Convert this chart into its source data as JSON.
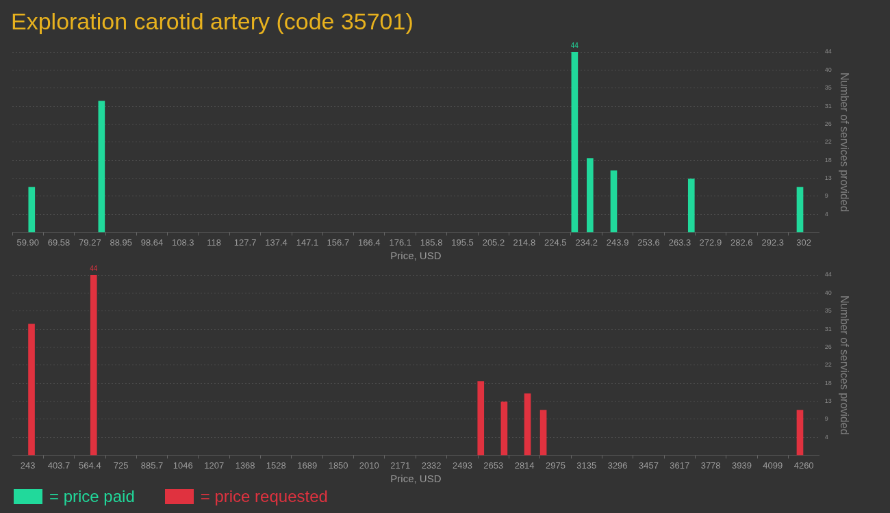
{
  "chart_data": [
    {
      "type": "bar",
      "title": "Exploration carotid artery (code 35701)",
      "xlabel": "Price, USD",
      "ylabel": "Number of services provided",
      "x": [
        61.1,
        82.9,
        230.5,
        235.3,
        242.7,
        266.9,
        300.8
      ],
      "series": [
        {
          "name": "= price paid",
          "color": "#21d99b",
          "values": [
            11,
            32,
            44,
            18,
            15,
            13,
            11
          ],
          "value_labels": [
            null,
            null,
            "44",
            null,
            null,
            null,
            null
          ]
        }
      ],
      "xlim": [
        59.9,
        302
      ],
      "xticks": [
        {
          "value": 59.9,
          "label": "59.90"
        },
        69.58,
        79.27,
        88.95,
        98.64,
        108.3,
        118,
        127.7,
        137.4,
        147.1,
        156.7,
        166.4,
        176.1,
        185.8,
        195.5,
        205.2,
        214.8,
        224.5,
        234.2,
        243.9,
        253.6,
        263.3,
        272.9,
        282.6,
        292.3,
        302
      ],
      "ylim": [
        0,
        44
      ],
      "yticks": [
        {
          "value": 4.4,
          "label": "4"
        },
        {
          "value": 8.8,
          "label": "9"
        },
        {
          "value": 13.2,
          "label": "13"
        },
        {
          "value": 17.6,
          "label": "18"
        },
        {
          "value": 22,
          "label": "22"
        },
        {
          "value": 26.4,
          "label": "26"
        },
        {
          "value": 30.8,
          "label": "31"
        },
        {
          "value": 35.2,
          "label": "35"
        },
        {
          "value": 39.6,
          "label": "40"
        },
        {
          "value": 44,
          "label": "44"
        }
      ],
      "grid": "y",
      "legend": "bottom left"
    },
    {
      "type": "bar",
      "xlabel": "Price, USD",
      "ylabel": "Number of services provided",
      "x": [
        262,
        583.6,
        2587.7,
        2708.7,
        2829.8,
        2911.4,
        4240
      ],
      "series": [
        {
          "name": "= price requested",
          "color": "#e0323f",
          "values": [
            32,
            44,
            18,
            13,
            15,
            11,
            11
          ],
          "value_labels": [
            null,
            "44",
            null,
            null,
            null,
            null,
            null
          ]
        }
      ],
      "xlim": [
        243,
        4260
      ],
      "xticks": [
        243,
        403.7,
        564.4,
        725,
        885.7,
        1046,
        1207,
        1368,
        1528,
        1689,
        1850,
        2010,
        2171,
        2332,
        2493,
        2653,
        2814,
        2975,
        3135,
        3296,
        3457,
        3617,
        3778,
        3939,
        4099,
        4260
      ],
      "ylim": [
        0,
        44
      ],
      "yticks": [
        {
          "value": 4.4,
          "label": "4"
        },
        {
          "value": 8.8,
          "label": "9"
        },
        {
          "value": 13.2,
          "label": "13"
        },
        {
          "value": 17.6,
          "label": "18"
        },
        {
          "value": 22,
          "label": "22"
        },
        {
          "value": 26.4,
          "label": "26"
        },
        {
          "value": 30.8,
          "label": "31"
        },
        {
          "value": 35.2,
          "label": "35"
        },
        {
          "value": 39.6,
          "label": "40"
        },
        {
          "value": 44,
          "label": "44"
        }
      ],
      "grid": "y",
      "legend": "bottom left"
    }
  ]
}
